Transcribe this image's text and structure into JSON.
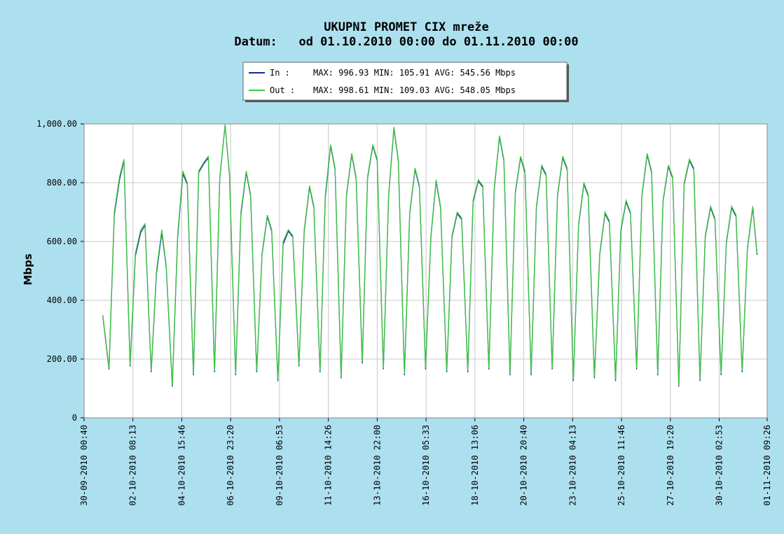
{
  "chart_data": {
    "type": "line",
    "title": "UKUPNI PROMET CIX mreže",
    "subtitle": "Datum:   od 01.10.2010 00:00 do 01.11.2010 00:00",
    "ylabel": "Mbps",
    "x": [
      "30-09-2010 22:00",
      "01-10-2010 05:00",
      "01-10-2010 11:00",
      "01-10-2010 17:00",
      "01-10-2010 22:00",
      "02-10-2010 05:00",
      "02-10-2010 11:00",
      "02-10-2010 17:00",
      "02-10-2010 22:00",
      "03-10-2010 05:00",
      "03-10-2010 11:00",
      "03-10-2010 17:00",
      "03-10-2010 22:00",
      "04-10-2010 05:00",
      "04-10-2010 11:00",
      "04-10-2010 17:00",
      "04-10-2010 22:00",
      "05-10-2010 05:00",
      "05-10-2010 11:00",
      "05-10-2010 17:00",
      "05-10-2010 22:00",
      "06-10-2010 05:00",
      "06-10-2010 11:00",
      "06-10-2010 17:00",
      "06-10-2010 22:00",
      "07-10-2010 05:00",
      "07-10-2010 11:00",
      "07-10-2010 17:00",
      "07-10-2010 22:00",
      "08-10-2010 05:00",
      "08-10-2010 11:00",
      "08-10-2010 17:00",
      "08-10-2010 22:00",
      "09-10-2010 05:00",
      "09-10-2010 11:00",
      "09-10-2010 17:00",
      "09-10-2010 22:00",
      "10-10-2010 05:00",
      "10-10-2010 11:00",
      "10-10-2010 17:00",
      "10-10-2010 22:00",
      "11-10-2010 05:00",
      "11-10-2010 11:00",
      "11-10-2010 17:00",
      "11-10-2010 22:00",
      "12-10-2010 05:00",
      "12-10-2010 11:00",
      "12-10-2010 17:00",
      "12-10-2010 22:00",
      "13-10-2010 05:00",
      "13-10-2010 11:00",
      "13-10-2010 17:00",
      "13-10-2010 22:00",
      "14-10-2010 05:00",
      "14-10-2010 11:00",
      "14-10-2010 17:00",
      "14-10-2010 22:00",
      "15-10-2010 05:00",
      "15-10-2010 11:00",
      "15-10-2010 17:00",
      "15-10-2010 22:00",
      "16-10-2010 05:00",
      "16-10-2010 11:00",
      "16-10-2010 17:00",
      "16-10-2010 22:00",
      "17-10-2010 05:00",
      "17-10-2010 11:00",
      "17-10-2010 17:00",
      "17-10-2010 22:00",
      "18-10-2010 05:00",
      "18-10-2010 11:00",
      "18-10-2010 17:00",
      "18-10-2010 22:00",
      "19-10-2010 05:00",
      "19-10-2010 11:00",
      "19-10-2010 17:00",
      "19-10-2010 22:00",
      "20-10-2010 05:00",
      "20-10-2010 11:00",
      "20-10-2010 17:00",
      "20-10-2010 22:00",
      "21-10-2010 05:00",
      "21-10-2010 11:00",
      "21-10-2010 17:00",
      "21-10-2010 22:00",
      "22-10-2010 05:00",
      "22-10-2010 11:00",
      "22-10-2010 17:00",
      "22-10-2010 22:00",
      "23-10-2010 05:00",
      "23-10-2010 11:00",
      "23-10-2010 17:00",
      "23-10-2010 22:00",
      "24-10-2010 05:00",
      "24-10-2010 11:00",
      "24-10-2010 17:00",
      "24-10-2010 22:00",
      "25-10-2010 05:00",
      "25-10-2010 11:00",
      "25-10-2010 17:00",
      "25-10-2010 22:00",
      "26-10-2010 05:00",
      "26-10-2010 11:00",
      "26-10-2010 17:00",
      "26-10-2010 22:00",
      "27-10-2010 05:00",
      "27-10-2010 11:00",
      "27-10-2010 17:00",
      "27-10-2010 22:00",
      "28-10-2010 05:00",
      "28-10-2010 11:00",
      "28-10-2010 17:00",
      "28-10-2010 22:00",
      "29-10-2010 05:00",
      "29-10-2010 11:00",
      "29-10-2010 17:00",
      "29-10-2010 22:00",
      "30-10-2010 05:00",
      "30-10-2010 11:00",
      "30-10-2010 17:00",
      "30-10-2010 22:00",
      "31-10-2010 05:00",
      "31-10-2010 11:00",
      "31-10-2010 17:00",
      "31-10-2010 22:00"
    ],
    "series": [
      {
        "name": "In :",
        "stats": "MAX: 996.93 MIN: 105.91 AVG: 545.56 Mbps",
        "color": "#1a2aa0",
        "values": [
          345,
          165,
          690,
          810,
          875,
          175,
          550,
          630,
          655,
          155,
          490,
          630,
          515,
          106,
          610,
          830,
          795,
          145,
          835,
          865,
          885,
          155,
          815,
          997,
          825,
          145,
          690,
          835,
          755,
          155,
          555,
          685,
          635,
          125,
          590,
          635,
          615,
          175,
          635,
          785,
          715,
          155,
          750,
          925,
          845,
          135,
          755,
          895,
          815,
          185,
          815,
          925,
          875,
          165,
          755,
          985,
          875,
          145,
          695,
          845,
          785,
          165,
          615,
          805,
          715,
          155,
          615,
          695,
          675,
          155,
          735,
          805,
          785,
          165,
          775,
          955,
          875,
          145,
          765,
          885,
          835,
          145,
          715,
          855,
          825,
          165,
          755,
          885,
          845,
          125,
          655,
          795,
          755,
          135,
          555,
          695,
          665,
          125,
          635,
          735,
          695,
          165,
          755,
          895,
          835,
          145,
          735,
          855,
          815,
          106,
          795,
          875,
          845,
          125,
          615,
          715,
          675,
          145,
          595,
          715,
          685,
          155,
          575,
          715,
          555
        ]
      },
      {
        "name": "Out :",
        "stats": "MAX: 998.61 MIN: 109.03 AVG: 548.05 Mbps",
        "color": "#3ec83e",
        "values": [
          350,
          170,
          700,
          820,
          880,
          180,
          560,
          640,
          660,
          160,
          500,
          640,
          520,
          110,
          620,
          840,
          800,
          150,
          840,
          870,
          890,
          160,
          820,
          998,
          830,
          150,
          700,
          840,
          760,
          160,
          560,
          690,
          640,
          130,
          600,
          640,
          620,
          180,
          640,
          790,
          720,
          160,
          760,
          930,
          850,
          140,
          760,
          900,
          820,
          190,
          820,
          930,
          880,
          170,
          760,
          990,
          880,
          150,
          700,
          850,
          790,
          170,
          620,
          810,
          720,
          160,
          620,
          700,
          680,
          160,
          740,
          810,
          790,
          170,
          780,
          960,
          880,
          150,
          770,
          890,
          840,
          150,
          720,
          860,
          830,
          170,
          760,
          890,
          850,
          130,
          660,
          800,
          760,
          140,
          560,
          700,
          670,
          130,
          640,
          740,
          700,
          170,
          760,
          900,
          840,
          150,
          740,
          860,
          820,
          110,
          800,
          880,
          850,
          130,
          620,
          720,
          680,
          150,
          600,
          720,
          690,
          160,
          580,
          720,
          560
        ]
      }
    ],
    "xlim": [
      "30-09-2010 00:40",
      "01-11-2010 09:26"
    ],
    "xticks": [
      "30-09-2010 00:40",
      "02-10-2010 08:13",
      "04-10-2010 15:46",
      "06-10-2010 23:20",
      "09-10-2010 06:53",
      "11-10-2010 14:26",
      "13-10-2010 22:00",
      "16-10-2010 05:33",
      "18-10-2010 13:06",
      "20-10-2010 20:40",
      "23-10-2010 04:13",
      "25-10-2010 11:46",
      "27-10-2010 19:20",
      "30-10-2010 02:53",
      "01-11-2010 09:26"
    ],
    "ylim": [
      0,
      1000
    ],
    "yticks": [
      0,
      {
        "value": 200,
        "label": "200.00"
      },
      {
        "value": 400,
        "label": "400.00"
      },
      {
        "value": 600,
        "label": "600.00"
      },
      {
        "value": 800,
        "label": "800.00"
      },
      {
        "value": 1000,
        "label": "1,000.00"
      }
    ],
    "grid": true
  }
}
